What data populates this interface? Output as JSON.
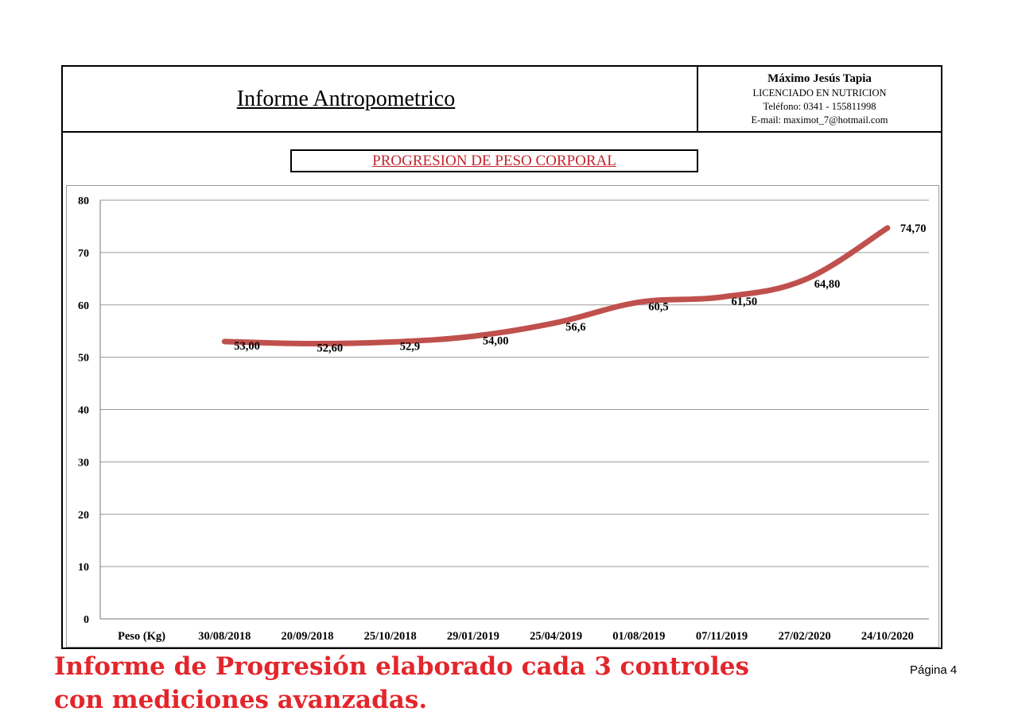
{
  "header": {
    "report_title": "Informe Antropometrico",
    "professional": {
      "name": "Máximo Jesús Tapia",
      "title": "LICENCIADO EN NUTRICION",
      "phone": "Teléfono: 0341 - 155811998",
      "email": "E-mail: maximot_7@hotmail.com"
    }
  },
  "chart_data": {
    "type": "line",
    "title": "PROGRESION DE PESO CORPORAL",
    "xlabel": "",
    "ylabel": "",
    "categories": [
      "Peso (Kg)",
      "30/08/2018",
      "20/09/2018",
      "25/10/2018",
      "29/01/2019",
      "25/04/2019",
      "01/08/2019",
      "07/11/2019",
      "27/02/2020",
      "24/10/2020"
    ],
    "series": [
      {
        "values": [
          null,
          53.0,
          52.6,
          52.9,
          54.0,
          56.6,
          60.5,
          61.5,
          64.8,
          74.7
        ],
        "labels": [
          "",
          "53,00",
          "52,60",
          "52,9",
          "54,00",
          "56,6",
          "60,5",
          "61,50",
          "64,80",
          "74,70"
        ]
      }
    ],
    "ylim": [
      0,
      80
    ],
    "yticks": [
      0,
      10,
      20,
      30,
      40,
      50,
      60,
      70,
      80
    ],
    "grid": true,
    "legend": "none",
    "line_color": "#c0504d"
  },
  "footer": {
    "note": "Informe de Progresión elaborado cada 3 controles con mediciones avanzadas.",
    "page": "Página 4"
  },
  "colors": {
    "accent_red": "#e3262b",
    "title_red": "#c0262e"
  }
}
